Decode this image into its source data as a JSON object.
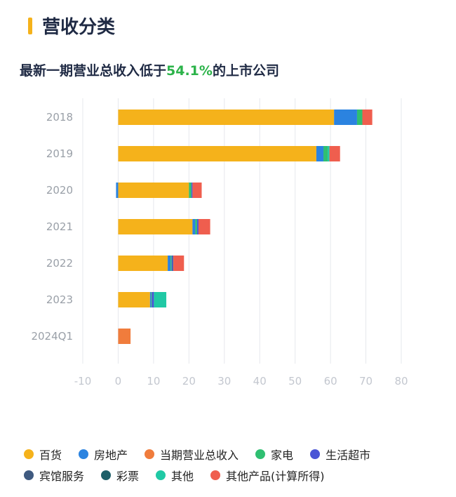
{
  "header": {
    "title": "营收分类"
  },
  "subtitle": {
    "prefix": "最新一期营业总收入低于",
    "highlight": "54.1%",
    "suffix": "的上市公司"
  },
  "chart_data": {
    "type": "bar",
    "orientation": "horizontal",
    "stacked": true,
    "categories": [
      "2018",
      "2019",
      "2020",
      "2021",
      "2022",
      "2023",
      "2024Q1"
    ],
    "xlim": [
      -10,
      80
    ],
    "xticks": [
      -10,
      0,
      10,
      20,
      30,
      40,
      50,
      60,
      70,
      80
    ],
    "grid": true,
    "legend_position": "bottom",
    "series": [
      {
        "name": "百货",
        "color": "#f5b21b",
        "values": [
          61,
          56,
          20,
          21,
          14,
          9,
          0
        ]
      },
      {
        "name": "房地产",
        "color": "#2b83e0",
        "values": [
          6.5,
          2,
          -0.6,
          0.8,
          0.8,
          0.3,
          0
        ]
      },
      {
        "name": "当期营业总收入",
        "color": "#f07c3c",
        "values": [
          0,
          0,
          0,
          0,
          0,
          0,
          3.5
        ]
      },
      {
        "name": "家电",
        "color": "#2fbf71",
        "values": [
          1.5,
          1.2,
          0.7,
          0.5,
          0.3,
          0.2,
          0
        ]
      },
      {
        "name": "生活超市",
        "color": "#4a55d6",
        "values": [
          0,
          0,
          0.3,
          0.4,
          0.3,
          0.6,
          0
        ]
      },
      {
        "name": "宾馆服务",
        "color": "#3f5a80",
        "values": [
          0,
          0,
          0,
          0,
          0.2,
          0,
          0
        ]
      },
      {
        "name": "彩票",
        "color": "#1d5f68",
        "values": [
          0,
          0,
          0,
          0,
          0,
          0,
          0
        ]
      },
      {
        "name": "其他",
        "color": "#20c9a5",
        "values": [
          0,
          0.5,
          0,
          0,
          0,
          3.5,
          0
        ]
      },
      {
        "name": "其他产品(计算所得)",
        "color": "#ef5e4e",
        "values": [
          2.8,
          3,
          2.6,
          3.3,
          3,
          0,
          0
        ]
      }
    ]
  },
  "legend": {
    "rows": [
      [
        0,
        1,
        2,
        3,
        4
      ],
      [
        5,
        6,
        7,
        8
      ]
    ]
  }
}
